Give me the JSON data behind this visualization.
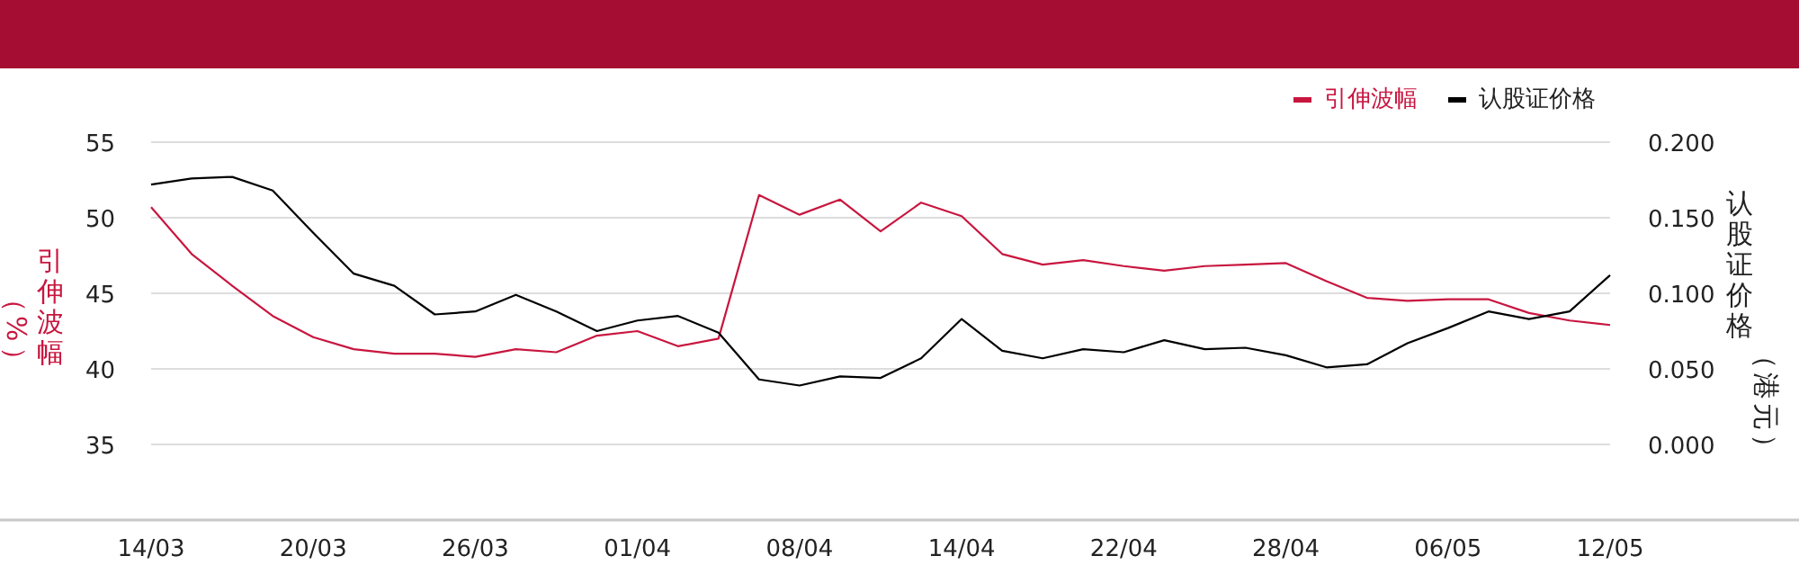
{
  "chart_data": {
    "type": "line",
    "ylabel": "引伸波幅（%）",
    "y2label": "认股证价格（港元）",
    "categories": [
      "14/03",
      null,
      null,
      null,
      "20/03",
      null,
      null,
      null,
      "26/03",
      null,
      null,
      null,
      "01/04",
      null,
      null,
      null,
      "08/04",
      null,
      null,
      null,
      "14/04",
      null,
      null,
      null,
      "22/04",
      null,
      null,
      null,
      "28/04",
      null,
      null,
      null,
      "06/05",
      null,
      null,
      null,
      "12/05"
    ],
    "series": [
      {
        "name": "引伸波幅",
        "color": "#c8163f",
        "values": [
          50.7,
          47.6,
          45.5,
          43.5,
          42.1,
          41.3,
          41.0,
          41.0,
          40.8,
          41.3,
          41.1,
          42.2,
          42.5,
          41.5,
          42.0,
          51.5,
          50.2,
          51.2,
          49.1,
          51.0,
          50.1,
          47.6,
          46.9,
          47.2,
          46.8,
          46.5,
          46.8,
          46.9,
          47.0,
          45.8,
          44.7,
          44.5,
          44.6,
          44.6,
          43.7,
          43.2,
          42.9
        ]
      },
      {
        "name": "认股证价格",
        "color": "#000000",
        "axis": "y2",
        "values": [
          0.172,
          0.176,
          0.177,
          0.168,
          0.14,
          0.113,
          0.105,
          0.086,
          0.088,
          0.099,
          0.088,
          0.075,
          0.082,
          0.085,
          0.074,
          0.043,
          0.039,
          0.045,
          0.044,
          0.057,
          0.083,
          0.062,
          0.057,
          0.063,
          0.061,
          0.069,
          0.063,
          0.064,
          0.059,
          0.051,
          0.053,
          0.067,
          0.077,
          0.088,
          0.083,
          0.088,
          0.112
        ]
      }
    ],
    "ylim": [
      30,
      55
    ],
    "yticks": [
      35,
      40,
      45,
      50,
      55
    ],
    "y2lim": [
      -0.05,
      0.2
    ],
    "y2ticks": [
      {
        "value": 0,
        "label": "0.000"
      },
      {
        "value": 0.05,
        "label": "0.050"
      },
      {
        "value": 0.1,
        "label": "0.100"
      },
      {
        "value": 0.15,
        "label": "0.150"
      },
      {
        "value": 0.2,
        "label": "0.200"
      }
    ],
    "grid": "y",
    "legend": "top right",
    "marker": "none",
    "line_style": "solid"
  }
}
